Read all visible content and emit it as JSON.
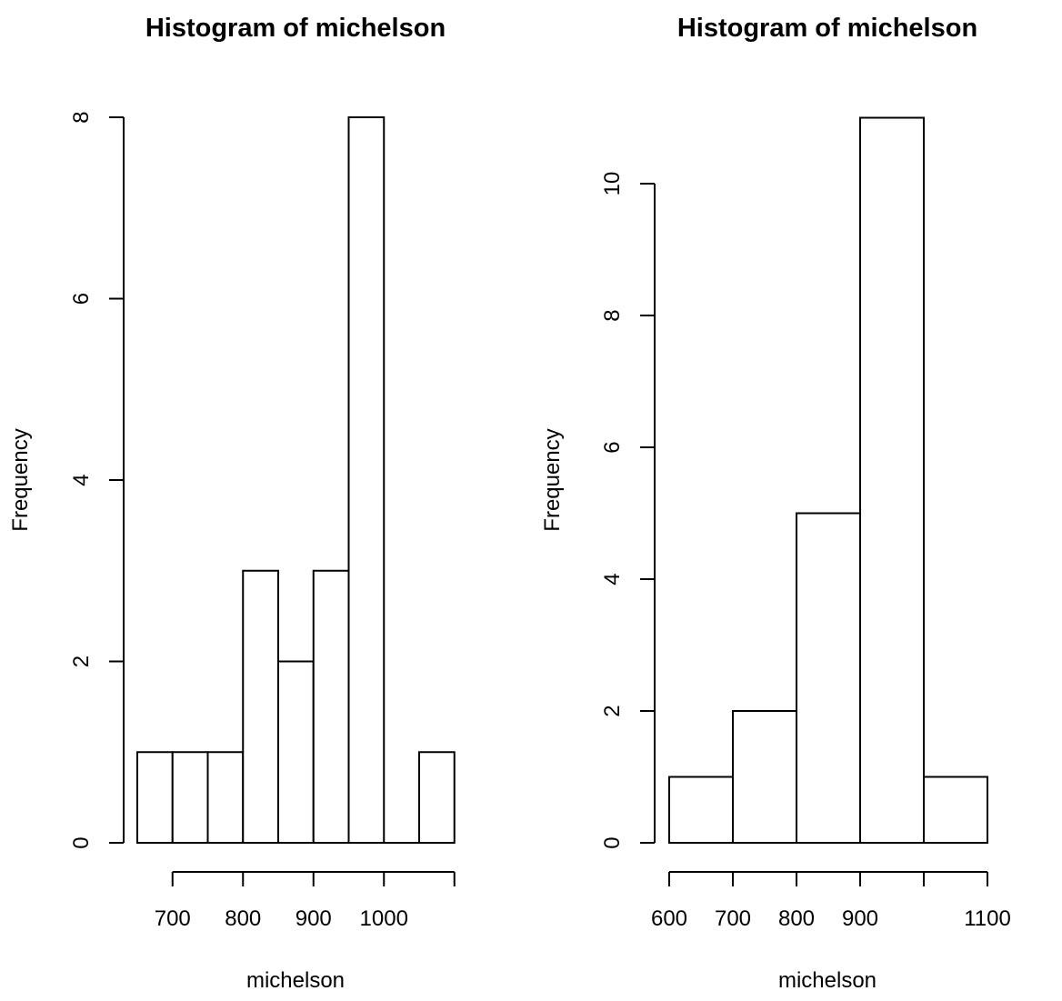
{
  "chart_data": [
    {
      "type": "bar",
      "title": "Histogram of michelson",
      "xlabel": "michelson",
      "ylabel": "Frequency",
      "bins": [
        [
          650,
          700
        ],
        [
          700,
          750
        ],
        [
          750,
          800
        ],
        [
          800,
          850
        ],
        [
          850,
          900
        ],
        [
          900,
          950
        ],
        [
          950,
          1000
        ],
        [
          1000,
          1050
        ],
        [
          1050,
          1100
        ]
      ],
      "values": [
        1,
        1,
        1,
        3,
        2,
        3,
        8,
        0,
        1
      ],
      "xlim": [
        650,
        1100
      ],
      "ylim": [
        0,
        8
      ],
      "xticks": [
        700,
        800,
        900,
        1000,
        1100
      ],
      "xtick_labels": [
        "700",
        "800",
        "900",
        "1000",
        ""
      ],
      "yticks": [
        0,
        2,
        4,
        6,
        8
      ],
      "ytick_labels": [
        "0",
        "2",
        "4",
        "6",
        "8"
      ],
      "grid": false
    },
    {
      "type": "bar",
      "title": "Histogram of michelson",
      "xlabel": "michelson",
      "ylabel": "Frequency",
      "bins": [
        [
          600,
          700
        ],
        [
          700,
          800
        ],
        [
          800,
          900
        ],
        [
          900,
          1000
        ],
        [
          1000,
          1100
        ]
      ],
      "values": [
        1,
        2,
        5,
        11,
        1
      ],
      "xlim": [
        600,
        1100
      ],
      "ylim": [
        0,
        11
      ],
      "xticks": [
        600,
        700,
        800,
        900,
        1000,
        1100
      ],
      "xtick_labels": [
        "600",
        "700",
        "800",
        "900",
        "",
        "1100"
      ],
      "yticks": [
        0,
        2,
        4,
        6,
        8,
        10
      ],
      "ytick_labels": [
        "0",
        "2",
        "4",
        "6",
        "8",
        "10"
      ],
      "grid": false
    }
  ]
}
